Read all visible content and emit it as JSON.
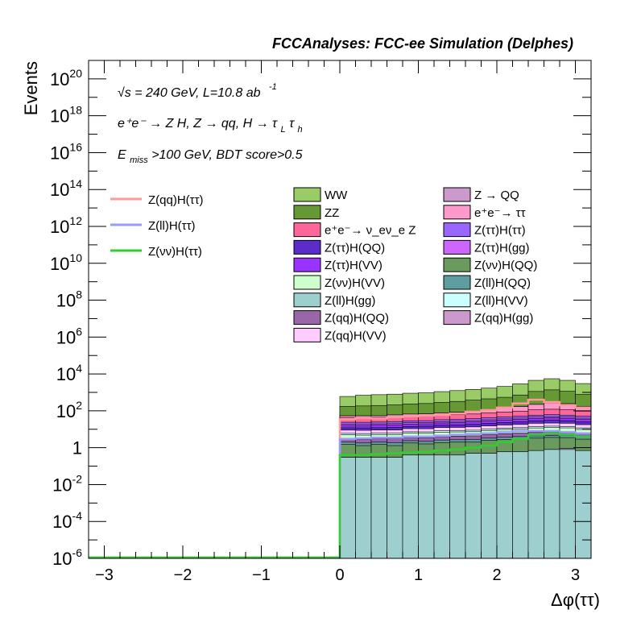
{
  "header": {
    "title": "FCCAnalyses: FCC-ee Simulation (Delphes)"
  },
  "annotations": {
    "energy_sqrt": "√s",
    "energy_rest": "= 240 GeV, L=10.8 ab",
    "lumi_exp": "-1",
    "process": "e⁺e⁻ → Z H, Z → qq, H → τ",
    "process_sub1": "L",
    "process_tau": "τ",
    "process_sub2": "h",
    "cut_E": "E",
    "cut_sub": "miss",
    "cut_rest": ">100 GeV, BDT score>0.5"
  },
  "chart_data": {
    "type": "area",
    "title": "FCCAnalyses: FCC-ee Simulation (Delphes)",
    "xlabel": "Δφ(ττ)",
    "ylabel": "Events",
    "xlim": [
      -3.2,
      3.2
    ],
    "ylim": [
      1e-06,
      1e+21
    ],
    "yscale": "log",
    "x_ticks": [
      "−3",
      "−2",
      "−1",
      "0",
      "1",
      "2",
      "3"
    ],
    "y_ticks": [
      {
        "base": "10",
        "exp": "-6"
      },
      {
        "base": "10",
        "exp": "-4"
      },
      {
        "base": "10",
        "exp": "-2"
      },
      {
        "base": "1",
        "exp": ""
      },
      {
        "base": "10",
        "exp": "2"
      },
      {
        "base": "10",
        "exp": "4"
      },
      {
        "base": "10",
        "exp": "6"
      },
      {
        "base": "10",
        "exp": "8"
      },
      {
        "base": "10",
        "exp": "10"
      },
      {
        "base": "10",
        "exp": "12"
      },
      {
        "base": "10",
        "exp": "14"
      },
      {
        "base": "10",
        "exp": "16"
      },
      {
        "base": "10",
        "exp": "18"
      },
      {
        "base": "10",
        "exp": "20"
      }
    ],
    "bin_edges": [
      0.0,
      0.2,
      0.4,
      0.6,
      0.8,
      1.0,
      1.2,
      1.4,
      1.6,
      1.8,
      2.0,
      2.2,
      2.4,
      2.6,
      2.8,
      3.0,
      3.2
    ],
    "stack_totals": [
      600,
      700,
      750,
      800,
      900,
      950,
      1100,
      1250,
      1450,
      1700,
      2100,
      2900,
      4500,
      5500,
      4500,
      3000
    ],
    "stack_layers": [
      {
        "name": "Z(ll)H(gg)",
        "color": "#9ecfcf",
        "values": [
          0.3,
          0.3,
          0.3,
          0.3,
          0.4,
          0.4,
          0.4,
          0.4,
          0.5,
          0.5,
          0.6,
          0.6,
          0.7,
          0.8,
          0.8,
          0.7
        ]
      },
      {
        "name": "Z(qq)H(gg)",
        "color": "#cc99cc",
        "values": [
          0,
          0,
          0,
          0,
          0,
          0,
          0,
          0,
          0,
          0,
          0,
          0,
          0,
          0,
          0.12,
          0
        ]
      },
      {
        "name": "Z(νν)H(QQ)",
        "color": "#6b9a5e",
        "values": [
          1.2,
          1.0,
          1.2,
          1.0,
          1.4,
          1.2,
          1.5,
          1.6,
          1.5,
          2.0,
          2.2,
          2.4,
          2.6,
          2.8,
          2.6,
          2.2
        ]
      },
      {
        "name": "Z(ll)H(QQ)",
        "color": "#5f9ea0",
        "values": [
          0.5,
          0.5,
          0.5,
          0.6,
          0.6,
          0.6,
          0.7,
          0.7,
          0.8,
          0.8,
          0.9,
          1.0,
          1.1,
          1.1,
          1.0,
          0.9
        ]
      },
      {
        "name": "Z(qq)H(QQ)",
        "color": "#9966a8",
        "values": [
          1.0,
          1.0,
          1.1,
          1.2,
          1.2,
          1.3,
          1.4,
          1.5,
          1.6,
          1.8,
          2.0,
          2.2,
          2.4,
          2.6,
          2.4,
          2.0
        ]
      },
      {
        "name": "Z(νν)H(VV)",
        "color": "#ccffcc",
        "values": [
          2,
          2,
          2,
          2,
          2.5,
          2.5,
          3,
          3,
          3,
          3.5,
          4,
          4,
          5,
          5,
          5,
          4
        ]
      },
      {
        "name": "Z(ll)H(VV)",
        "color": "#ccffff",
        "values": [
          1,
          1,
          1,
          1,
          1.2,
          1.2,
          1.4,
          1.4,
          1.5,
          1.6,
          1.8,
          2.0,
          2.2,
          2.4,
          2.2,
          2.0
        ]
      },
      {
        "name": "Z(qq)H(VV)",
        "color": "#ffccff",
        "values": [
          3,
          3,
          3,
          3,
          3.5,
          3.5,
          4,
          4,
          4.5,
          5,
          5.5,
          6,
          7,
          7,
          7,
          6
        ]
      },
      {
        "name": "Z(ττ)H(QQ)",
        "color": "#5b2cc9",
        "values": [
          3,
          3,
          3,
          3.5,
          3.5,
          4,
          4,
          4.5,
          5,
          5.5,
          6,
          7,
          8,
          9,
          8,
          7
        ]
      },
      {
        "name": "Z(ττ)H(VV)",
        "color": "#9933ff",
        "values": [
          4,
          4,
          4.5,
          4.5,
          5,
          5,
          5.5,
          6,
          6.5,
          7,
          8,
          9,
          10,
          11,
          10,
          9
        ]
      },
      {
        "name": "Z(ττ)H(gg)",
        "color": "#cc66ff",
        "values": [
          3,
          3,
          3,
          3,
          3.5,
          3.5,
          4,
          4,
          4.5,
          5,
          5.5,
          6,
          7,
          7,
          7,
          6
        ]
      },
      {
        "name": "Z(ττ)H(ττ)",
        "color": "#9966ff",
        "values": [
          5,
          5,
          5,
          6,
          6,
          6,
          7,
          7,
          8,
          9,
          10,
          11,
          12,
          13,
          12,
          11
        ]
      },
      {
        "name": "e⁺e⁻→ ν_eν_e Z",
        "color": "#ff6699",
        "values": [
          20,
          20,
          20,
          22,
          24,
          25,
          26,
          28,
          30,
          35,
          40,
          45,
          55,
          60,
          55,
          45
        ]
      },
      {
        "name": "e⁺e⁻→ ττ",
        "color": "#ff99cc",
        "values": [
          10,
          10,
          10,
          12,
          14,
          15,
          18,
          22,
          30,
          40,
          55,
          75,
          110,
          150,
          130,
          80
        ]
      },
      {
        "name": "Z → QQ",
        "color": "#cc99cc",
        "values": [
          0,
          0,
          0,
          0,
          0,
          0,
          0,
          0,
          0,
          0,
          0,
          0,
          0,
          0,
          0,
          0
        ]
      },
      {
        "name": "ZZ",
        "color": "#669933",
        "values": [
          120,
          130,
          140,
          150,
          170,
          180,
          210,
          240,
          280,
          330,
          400,
          550,
          900,
          1100,
          900,
          600
        ]
      }
    ],
    "signal_lines": [
      {
        "name": "Z(qq)H(ττ)",
        "color": "#ff9999",
        "values": [
          35,
          40,
          38,
          45,
          50,
          55,
          60,
          70,
          90,
          110,
          150,
          250,
          400,
          300,
          200,
          150
        ]
      },
      {
        "name": "Z(ll)H(ττ)",
        "color": "#9999ff",
        "values": [
          3,
          3.2,
          3.5,
          3.5,
          4,
          4,
          4.5,
          5,
          5.5,
          6,
          7,
          8,
          8,
          8,
          7,
          6
        ]
      },
      {
        "name": "Z(νν)H(ττ)",
        "color": "#33cc33",
        "values": [
          0.4,
          0.4,
          0.45,
          0.5,
          0.55,
          0.6,
          0.7,
          0.8,
          1.0,
          1.3,
          2.0,
          3.0,
          5.0,
          6.0,
          5.0,
          4.0
        ]
      }
    ],
    "legend_lines": [
      {
        "name": "Z(qq)H(ττ)",
        "color": "#ff9999"
      },
      {
        "name": "Z(ll)H(ττ)",
        "color": "#9999ff"
      },
      {
        "name": "Z(νν)H(ττ)",
        "color": "#33cc33"
      }
    ],
    "legend_boxes": [
      {
        "name": "WW",
        "color": "#99cc66"
      },
      {
        "name": "Z → QQ",
        "color": "#cc99cc"
      },
      {
        "name": "ZZ",
        "color": "#669933"
      },
      {
        "name": "e⁺e⁻→ ττ",
        "color": "#ff99cc"
      },
      {
        "name": "e⁺e⁻→ ν_eν_e Z",
        "color": "#ff6699"
      },
      {
        "name": "Z(ττ)H(ττ)",
        "color": "#9966ff"
      },
      {
        "name": "Z(ττ)H(QQ)",
        "color": "#5b2cc9"
      },
      {
        "name": "Z(ττ)H(gg)",
        "color": "#cc66ff"
      },
      {
        "name": "Z(ττ)H(VV)",
        "color": "#9933ff"
      },
      {
        "name": "Z(νν)H(QQ)",
        "color": "#6b9a5e"
      },
      {
        "name": "Z(νν)H(VV)",
        "color": "#ccffcc"
      },
      {
        "name": "Z(ll)H(QQ)",
        "color": "#5f9ea0"
      },
      {
        "name": "Z(ll)H(gg)",
        "color": "#9ecfcf"
      },
      {
        "name": "Z(ll)H(VV)",
        "color": "#ccffff"
      },
      {
        "name": "Z(qq)H(QQ)",
        "color": "#9966a8"
      },
      {
        "name": "Z(qq)H(gg)",
        "color": "#cc99cc"
      },
      {
        "name": "Z(qq)H(VV)",
        "color": "#ffccff"
      }
    ],
    "grid": false,
    "legend_placement": "top-center"
  }
}
